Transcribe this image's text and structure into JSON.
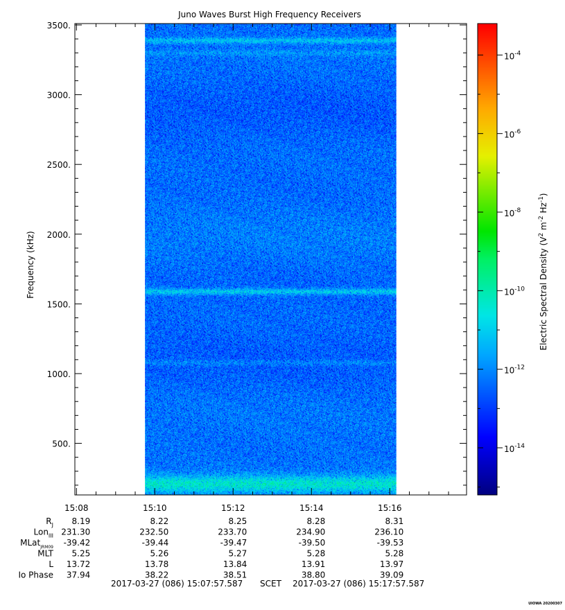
{
  "chart_data": {
    "type": "heatmap",
    "title": "Juno Waves Burst High Frequency Receivers",
    "ylabel": "Frequency (kHz)",
    "colorbar_label_base": "Electric Spectral Density (V",
    "colorbar_label_sup1": "2",
    "colorbar_label_mid": " m",
    "colorbar_label_sup2": "-2",
    "colorbar_label_mid2": " Hz",
    "colorbar_label_sup3": "-1",
    "colorbar_label_end": ")",
    "ylim": [
      130,
      3510
    ],
    "y_ticks": [
      500,
      1000,
      1500,
      2000,
      2500,
      3000,
      3500
    ],
    "y_tick_labels": [
      "500.",
      "1000.",
      "1500.",
      "2000.",
      "2500.",
      "3000.",
      "3500."
    ],
    "xlim": [
      "15:07:57.587",
      "15:17:57.587"
    ],
    "x_ticks": [
      "15:08",
      "15:10",
      "15:12",
      "15:14",
      "15:16"
    ],
    "data_time_range": [
      "15:09:45",
      "15:16:10"
    ],
    "colorbar_log_range": [
      -15.2,
      -3.2
    ],
    "colorbar_ticks": [
      {
        "base": "10",
        "exp": "-4",
        "value": -4
      },
      {
        "base": "10",
        "exp": "-6",
        "value": -6
      },
      {
        "base": "10",
        "exp": "-8",
        "value": -8
      },
      {
        "base": "10",
        "exp": "-10",
        "value": -10
      },
      {
        "base": "10",
        "exp": "-12",
        "value": -12
      },
      {
        "base": "10",
        "exp": "-14",
        "value": -14
      }
    ],
    "background_level_log": -12.3,
    "emission_bands": [
      {
        "freq_khz": 3390,
        "level_log": -11.2
      },
      {
        "freq_khz": 3300,
        "level_log": -11.8
      },
      {
        "freq_khz": 1590,
        "level_log": -10.9
      },
      {
        "freq_khz": 1080,
        "level_log": -11.8
      },
      {
        "freq_khz": 210,
        "level_log": -10.5
      }
    ],
    "ephemeris": {
      "rows": [
        {
          "label": "R",
          "sub": "J",
          "values": [
            "8.19",
            "8.22",
            "8.25",
            "8.28",
            "8.31"
          ]
        },
        {
          "label": "Lon",
          "sub": "III",
          "values": [
            "231.30",
            "232.50",
            "233.70",
            "234.90",
            "236.10"
          ]
        },
        {
          "label": "MLat",
          "sub": "JRM09",
          "values": [
            "-39.42",
            "-39.44",
            "-39.47",
            "-39.50",
            "-39.53"
          ]
        },
        {
          "label": "MLT",
          "sub": "",
          "values": [
            "5.25",
            "5.26",
            "5.27",
            "5.28",
            "5.28"
          ]
        },
        {
          "label": "L",
          "sub": "",
          "values": [
            "13.72",
            "13.78",
            "13.84",
            "13.91",
            "13.97"
          ]
        },
        {
          "label": "Io Phase",
          "sub": "",
          "values": [
            "37.94",
            "38.22",
            "38.51",
            "38.80",
            "39.09"
          ]
        }
      ]
    },
    "scet_start": "2017-03-27 (086) 15:07:57.587",
    "scet_label": "SCET",
    "scet_end": "2017-03-27 (086) 15:17:57.587",
    "credit": "UIOWA 20200307"
  }
}
